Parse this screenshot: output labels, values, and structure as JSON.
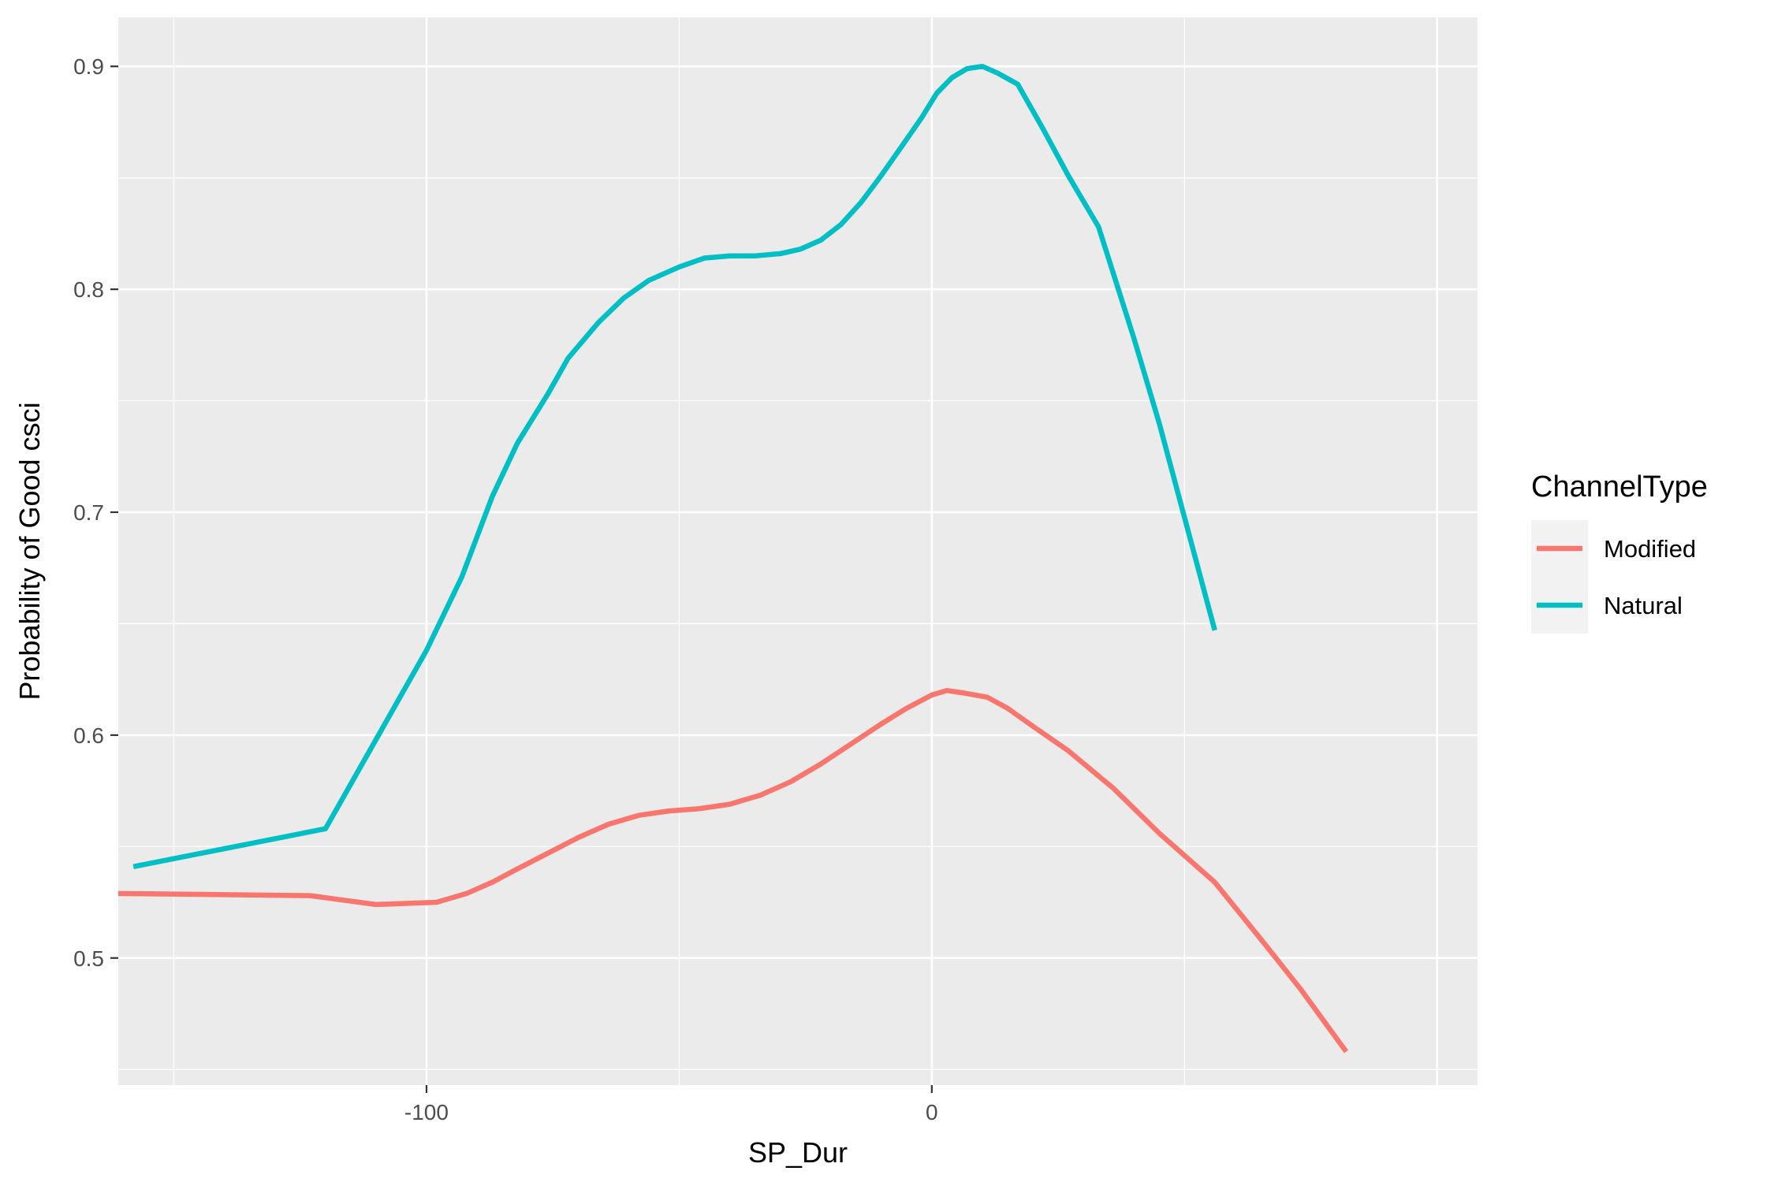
{
  "chart_data": {
    "type": "line",
    "xlabel": "SP_Dur",
    "ylabel": "Probability of Good csci",
    "xlim": [
      -161,
      108
    ],
    "ylim": [
      0.443,
      0.922
    ],
    "x_ticks": [
      -100,
      0
    ],
    "x_tick_labels": [
      "-100",
      "0"
    ],
    "y_ticks": [
      0.5,
      0.6,
      0.7,
      0.8,
      0.9
    ],
    "y_tick_labels": [
      "0.5",
      "0.6",
      "0.7",
      "0.8",
      "0.9"
    ],
    "grid": true,
    "legend": {
      "title": "ChannelType",
      "placement": "right"
    },
    "series": [
      {
        "name": "Modified",
        "color": "#F8766D",
        "points": [
          [
            -163,
            0.529
          ],
          [
            -123,
            0.528
          ],
          [
            -110,
            0.524
          ],
          [
            -98,
            0.525
          ],
          [
            -92,
            0.529
          ],
          [
            -87,
            0.534
          ],
          [
            -82,
            0.54
          ],
          [
            -76,
            0.547
          ],
          [
            -70,
            0.554
          ],
          [
            -64,
            0.56
          ],
          [
            -58,
            0.564
          ],
          [
            -52,
            0.566
          ],
          [
            -46,
            0.567
          ],
          [
            -40,
            0.569
          ],
          [
            -34,
            0.573
          ],
          [
            -28,
            0.579
          ],
          [
            -22,
            0.587
          ],
          [
            -16,
            0.596
          ],
          [
            -10,
            0.605
          ],
          [
            -5,
            0.612
          ],
          [
            0,
            0.618
          ],
          [
            3,
            0.62
          ],
          [
            6,
            0.619
          ],
          [
            11,
            0.617
          ],
          [
            15,
            0.612
          ],
          [
            20,
            0.604
          ],
          [
            27,
            0.593
          ],
          [
            36,
            0.576
          ],
          [
            45,
            0.556
          ],
          [
            56,
            0.534
          ],
          [
            66,
            0.506
          ],
          [
            73,
            0.486
          ],
          [
            82,
            0.458
          ]
        ]
      },
      {
        "name": "Natural",
        "color": "#00BFC4",
        "points": [
          [
            -158,
            0.541
          ],
          [
            -120,
            0.558
          ],
          [
            -108,
            0.606
          ],
          [
            -100,
            0.638
          ],
          [
            -93,
            0.671
          ],
          [
            -87,
            0.707
          ],
          [
            -82,
            0.731
          ],
          [
            -76,
            0.753
          ],
          [
            -72,
            0.769
          ],
          [
            -66,
            0.785
          ],
          [
            -61,
            0.796
          ],
          [
            -56,
            0.804
          ],
          [
            -50,
            0.81
          ],
          [
            -45,
            0.814
          ],
          [
            -40,
            0.815
          ],
          [
            -35,
            0.815
          ],
          [
            -30,
            0.816
          ],
          [
            -26,
            0.818
          ],
          [
            -22,
            0.822
          ],
          [
            -18,
            0.829
          ],
          [
            -14,
            0.839
          ],
          [
            -10,
            0.851
          ],
          [
            -6,
            0.864
          ],
          [
            -2,
            0.877
          ],
          [
            1,
            0.888
          ],
          [
            4,
            0.895
          ],
          [
            7,
            0.899
          ],
          [
            10,
            0.9
          ],
          [
            13,
            0.897
          ],
          [
            17,
            0.892
          ],
          [
            22,
            0.872
          ],
          [
            27,
            0.851
          ],
          [
            33,
            0.828
          ],
          [
            40,
            0.778
          ],
          [
            45,
            0.74
          ],
          [
            56,
            0.647
          ]
        ]
      }
    ]
  }
}
